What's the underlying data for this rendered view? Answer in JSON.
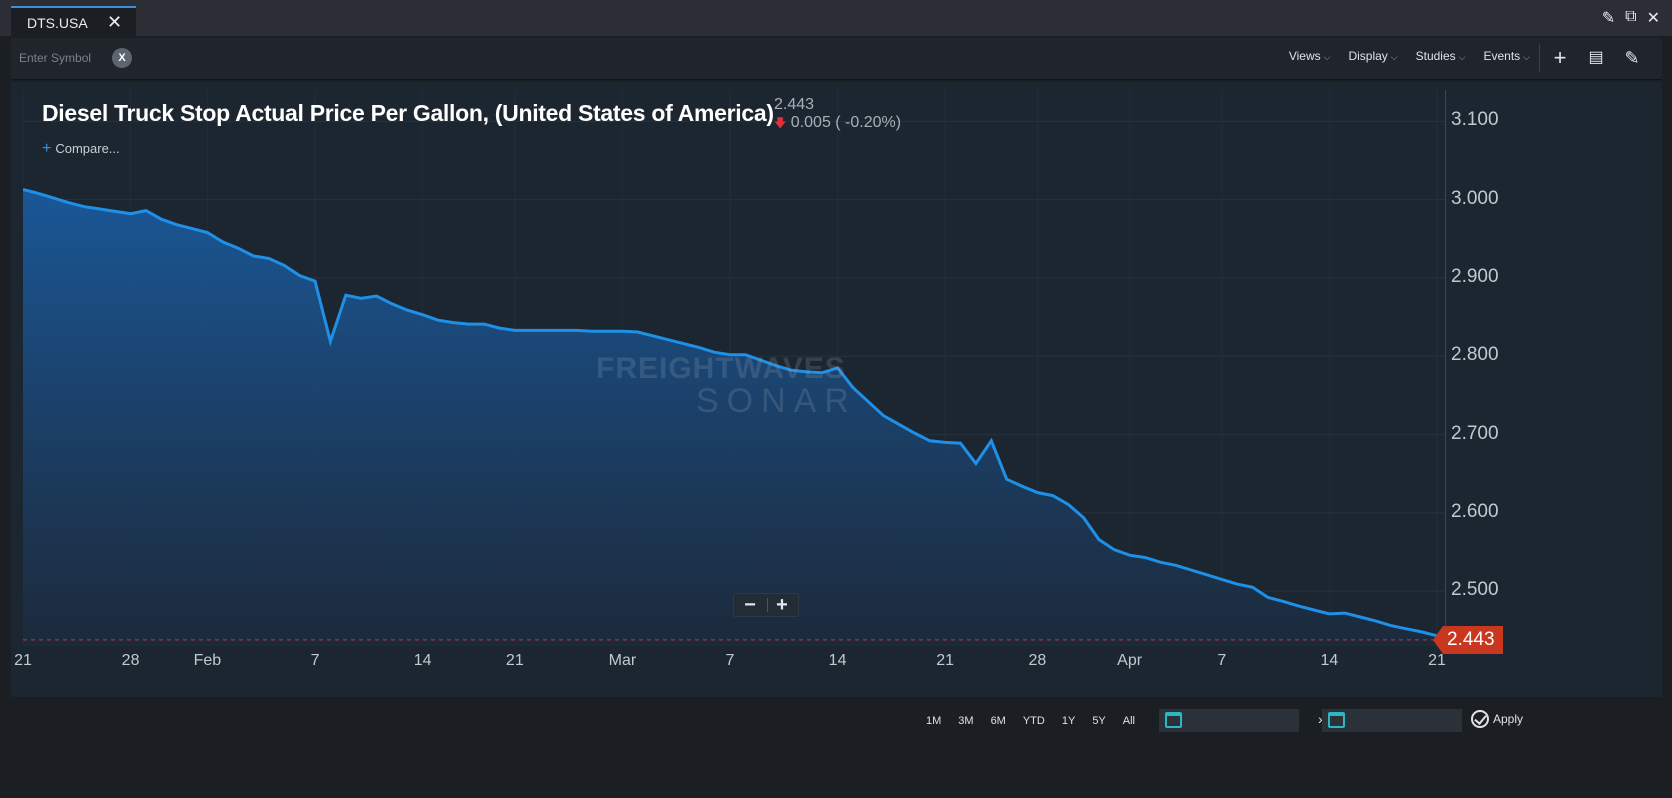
{
  "tab": {
    "label": "DTS.USA",
    "close": "✕"
  },
  "window_icons": [
    "edit-icon",
    "popout-icon",
    "close-icon"
  ],
  "toolbar": {
    "symbol_placeholder": "Enter Symbol",
    "symbol_clear": "X",
    "menus": [
      "Views",
      "Display",
      "Studies",
      "Events"
    ]
  },
  "chart": {
    "title": "Diesel Truck Stop Actual Price Per Gallon, (United States of America)",
    "last_price": "2.443",
    "change": "0.005 ( -0.20%)",
    "compare_label": "Compare...",
    "watermark_top": "FREIGHTWAVES",
    "watermark_bottom": "SONAR",
    "last_tag": "2.443",
    "line_color": "#1e90e8",
    "zoom_out": "−",
    "zoom_in": "+"
  },
  "chart_data": {
    "type": "area",
    "ylim": [
      2.43,
      3.14
    ],
    "yticks": [
      "3.100",
      "3.000",
      "2.900",
      "2.800",
      "2.700",
      "2.600",
      "2.500"
    ],
    "xticks": [
      "21",
      "28",
      "Feb",
      "7",
      "14",
      "21",
      "Mar",
      "7",
      "14",
      "21",
      "28",
      "Apr",
      "7",
      "14",
      "21"
    ],
    "series": [
      {
        "values": [
          3.013,
          3.008,
          3.002,
          2.996,
          2.991,
          2.988,
          2.985,
          2.982,
          2.986,
          2.975,
          2.968,
          2.963,
          2.958,
          2.946,
          2.938,
          2.928,
          2.925,
          2.916,
          2.903,
          2.896,
          2.819,
          2.878,
          2.874,
          2.877,
          2.867,
          2.859,
          2.853,
          2.846,
          2.843,
          2.841,
          2.841,
          2.836,
          2.833,
          2.833,
          2.833,
          2.833,
          2.833,
          2.832,
          2.832,
          2.832,
          2.831,
          2.826,
          2.821,
          2.816,
          2.811,
          2.805,
          2.802,
          2.802,
          2.795,
          2.788,
          2.782,
          2.78,
          2.779,
          2.785,
          2.76,
          2.742,
          2.724,
          2.713,
          2.702,
          2.692,
          2.69,
          2.689,
          2.663,
          2.692,
          2.643,
          2.634,
          2.626,
          2.622,
          2.611,
          2.594,
          2.566,
          2.553,
          2.546,
          2.543,
          2.537,
          2.533,
          2.527,
          2.521,
          2.515,
          2.509,
          2.505,
          2.492,
          2.487,
          2.481,
          2.476,
          2.471,
          2.472,
          2.467,
          2.462,
          2.456,
          2.452,
          2.448,
          2.443
        ]
      }
    ]
  },
  "footer": {
    "ranges": [
      "1M",
      "3M",
      "6M",
      "YTD",
      "1Y",
      "5Y",
      "All"
    ],
    "start_date": "",
    "end_date": "",
    "date_arrow": "›",
    "apply": "Apply"
  }
}
